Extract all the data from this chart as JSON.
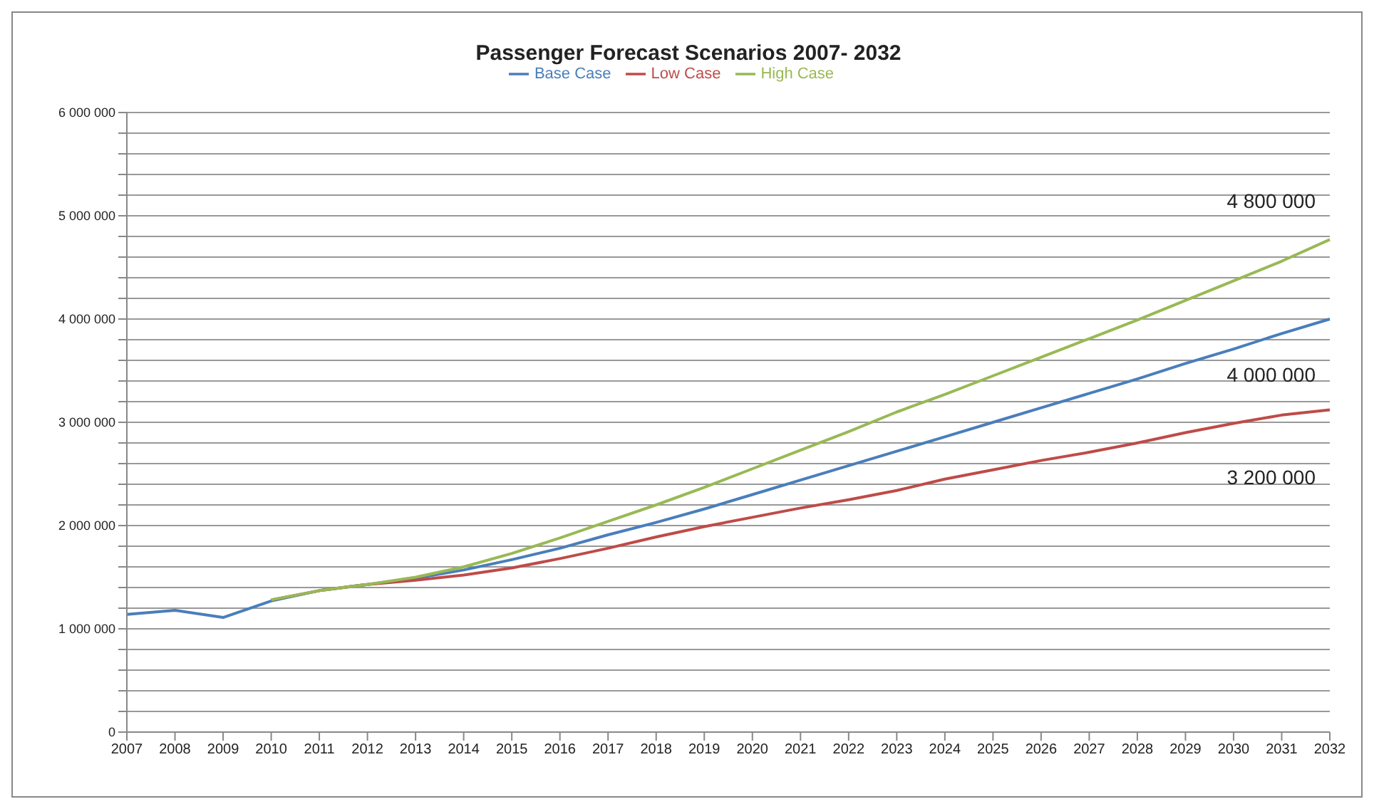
{
  "chart_data": {
    "type": "line",
    "title": "Passenger Forecast Scenarios 2007- 2032",
    "categories": [
      "2007",
      "2008",
      "2009",
      "2010",
      "2011",
      "2012",
      "2013",
      "2014",
      "2015",
      "2016",
      "2017",
      "2018",
      "2019",
      "2020",
      "2021",
      "2022",
      "2023",
      "2024",
      "2025",
      "2026",
      "2027",
      "2028",
      "2029",
      "2030",
      "2031",
      "2032"
    ],
    "series": [
      {
        "name": "Base Case",
        "color": "#4a7ebb",
        "values": [
          1140000,
          1180000,
          1110000,
          1270000,
          1370000,
          1430000,
          1490000,
          1570000,
          1670000,
          1780000,
          1910000,
          2030000,
          2160000,
          2300000,
          2440000,
          2580000,
          2720000,
          2860000,
          3000000,
          3140000,
          3280000,
          3420000,
          3570000,
          3710000,
          3860000,
          4000000
        ]
      },
      {
        "name": "Low Case",
        "color": "#be4b48",
        "values": [
          null,
          null,
          null,
          1280000,
          1370000,
          1430000,
          1470000,
          1520000,
          1590000,
          1680000,
          1780000,
          1890000,
          1990000,
          2080000,
          2170000,
          2250000,
          2340000,
          2450000,
          2540000,
          2630000,
          2710000,
          2800000,
          2900000,
          2990000,
          3070000,
          3120000
        ]
      },
      {
        "name": "High Case",
        "color": "#98b954",
        "values": [
          null,
          null,
          null,
          1280000,
          1370000,
          1430000,
          1500000,
          1600000,
          1730000,
          1880000,
          2040000,
          2200000,
          2370000,
          2550000,
          2730000,
          2910000,
          3100000,
          3270000,
          3450000,
          3630000,
          3810000,
          3990000,
          4180000,
          4370000,
          4560000,
          4770000
        ]
      }
    ],
    "ylim": [
      0,
      6000000
    ],
    "yticks": [
      0,
      {
        "value": 200000,
        "label": null
      },
      {
        "value": 400000,
        "label": null
      },
      {
        "value": 600000,
        "label": null
      },
      {
        "value": 800000,
        "label": null
      },
      {
        "value": 1000000,
        "label": "1 000 000"
      },
      {
        "value": 1200000,
        "label": null
      },
      {
        "value": 1400000,
        "label": null
      },
      {
        "value": 1600000,
        "label": null
      },
      {
        "value": 1800000,
        "label": null
      },
      {
        "value": 2000000,
        "label": "2 000 000"
      },
      {
        "value": 2200000,
        "label": null
      },
      {
        "value": 2400000,
        "label": null
      },
      {
        "value": 2600000,
        "label": null
      },
      {
        "value": 2800000,
        "label": null
      },
      {
        "value": 3000000,
        "label": "3 000 000"
      },
      {
        "value": 3200000,
        "label": null
      },
      {
        "value": 3400000,
        "label": null
      },
      {
        "value": 3600000,
        "label": null
      },
      {
        "value": 3800000,
        "label": null
      },
      {
        "value": 4000000,
        "label": "4 000 000"
      },
      {
        "value": 4200000,
        "label": null
      },
      {
        "value": 4400000,
        "label": null
      },
      {
        "value": 4600000,
        "label": null
      },
      {
        "value": 4800000,
        "label": null
      },
      {
        "value": 5000000,
        "label": "5 000 000"
      },
      {
        "value": 5200000,
        "label": null
      },
      {
        "value": 5400000,
        "label": null
      },
      {
        "value": 5600000,
        "label": null
      },
      {
        "value": 5800000,
        "label": null
      },
      {
        "value": 6000000,
        "label": "6 000 000"
      }
    ],
    "grid": "y",
    "legend": "top",
    "marker": "none",
    "line_style": "solid",
    "annotations": [
      {
        "text": "4 800 000",
        "x": "2032",
        "y": 4770000
      },
      {
        "text": "4 000 000",
        "x": "2032",
        "y": 4000000
      },
      {
        "text": "3 200 000",
        "x": "2032",
        "y": 3120000
      }
    ]
  }
}
